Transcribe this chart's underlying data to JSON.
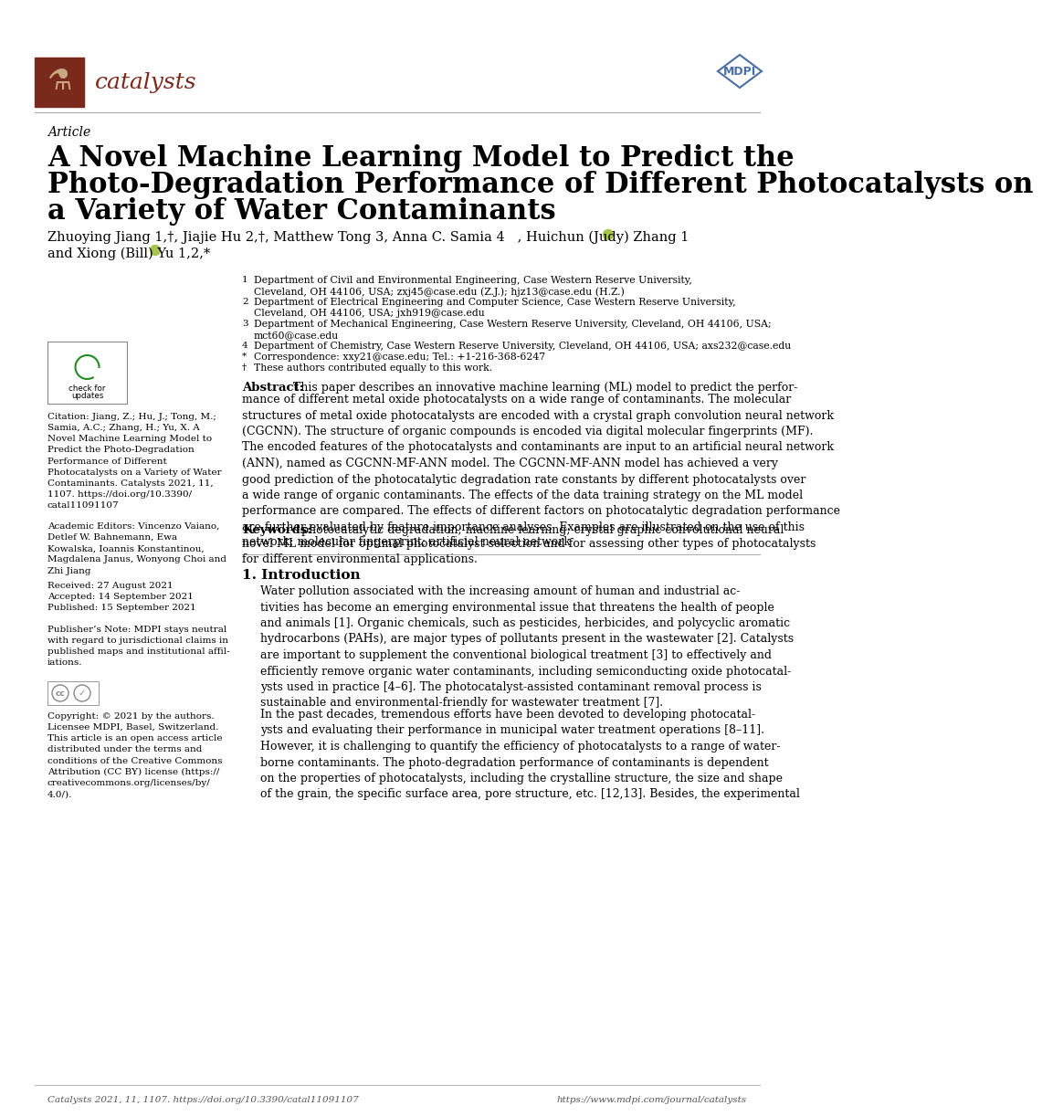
{
  "title_line1": "A Novel Machine Learning Model to Predict the",
  "title_line2": "Photo-Degradation Performance of Different Photocatalysts on",
  "title_line3": "a Variety of Water Contaminants",
  "article_label": "Article",
  "journal_name": "catalysts",
  "mdpi_color": "#4a6fa5",
  "header_color": "#7a2a1a",
  "bg_color": "#ffffff",
  "text_color": "#000000",
  "footer_text_left": "Catalysts 2021, 11, 1107. https://doi.org/10.3390/catal11091107",
  "footer_text_right": "https://www.mdpi.com/journal/catalysts",
  "citation_text": "Citation: Jiang, Z.; Hu, J.; Tong, M.;\nSamia, A.C.; Zhang, H.; Yu, X. A\nNovel Machine Learning Model to\nPredict the Photo-Degradation\nPerformance of Different\nPhotocatalysts on a Variety of Water\nContaminants. Catalysts 2021, 11,\n1107. https://doi.org/10.3390/\ncatal11091107",
  "academic_editors": "Academic Editors: Vincenzo Vaiano,\nDetlef W. Bahnemann, Ewa\nKowalska, Ioannis Konstantinou,\nMagdalena Janus, Wonyong Choi and\nZhi Jiang",
  "received": "Received: 27 August 2021",
  "accepted": "Accepted: 14 September 2021",
  "published": "Published: 15 September 2021",
  "publisher_note": "Publisher’s Note: MDPI stays neutral\nwith regard to jurisdictional claims in\npublished maps and institutional affil-\niations.",
  "copyright_text": "Copyright: © 2021 by the authors.\nLicensee MDPI, Basel, Switzerland.\nThis article is an open access article\ndistributed under the terms and\nconditions of the Creative Commons\nAttribution (CC BY) license (https://\ncreativecommons.org/licenses/by/\n4.0/).",
  "abstract_title": "Abstract:",
  "abstract_body": "This paper describes an innovative machine learning (ML) model to predict the perfor-\nmance of different metal oxide photocatalysts on a wide range of contaminants. The molecular\nstructures of metal oxide photocatalysts are encoded with a crystal graph convolution neural network\n(CGCNN). The structure of organic compounds is encoded via digital molecular fingerprints (MF).\nThe encoded features of the photocatalysts and contaminants are input to an artificial neural network\n(ANN), named as CGCNN-MF-ANN model. The CGCNN-MF-ANN model has achieved a very\ngood prediction of the photocatalytic degradation rate constants by different photocatalysts over\na wide range of organic contaminants. The effects of the data training strategy on the ML model\nperformance are compared. The effects of different factors on photocatalytic degradation performance\nare further evaluated by feature importance analyses. Examples are illustrated on the use of this\nnovel ML model for optimal photocatalyst selection and for assessing other types of photocatalysts\nfor different environmental applications.",
  "keywords_title": "Keywords:",
  "keywords_body": "photocatalytic degradation; machine learning; crystal graphic convolutional neural\nnetwork; molecular fingerprint; artificial neural network",
  "intro_title": "1. Introduction",
  "intro_body1": "Water pollution associated with the increasing amount of human and industrial ac-\ntivities has become an emerging environmental issue that threatens the health of people\nand animals [1]. Organic chemicals, such as pesticides, herbicides, and polycyclic aromatic\nhydrocarbons (PAHs), are major types of pollutants present in the wastewater [2]. Catalysts\nare important to supplement the conventional biological treatment [3] to effectively and\nefficiently remove organic water contaminants, including semiconducting oxide photocatal-\nysts used in practice [4–6]. The photocatalyst-assisted contaminant removal process is\nsustainable and environmental-friendly for wastewater treatment [7].",
  "intro_body2": "In the past decades, tremendous efforts have been devoted to developing photocatal-\nysts and evaluating their performance in municipal water treatment operations [8–11].\nHowever, it is challenging to quantify the efficiency of photocatalysts to a range of water-\nborne contaminants. The photo-degradation performance of contaminants is dependent\non the properties of photocatalysts, including the crystalline structure, the size and shape\nof the grain, the specific surface area, pore structure, etc. [12,13]. Besides, the experimental",
  "authors_line1": "Zhuoying Jiang 1,†, Jiajie Hu 2,†, Matthew Tong 3, Anna C. Samia 4   , Huichun (Judy) Zhang 1",
  "authors_line2": "and Xiong (Bill) Yu 1,2,*   ",
  "aff_lines": [
    [
      "1",
      "Department of Civil and Environmental Engineering, Case Western Reserve University,",
      292
    ],
    [
      "",
      "Cleveland, OH 44106, USA; zxj45@case.edu (Z.J.); hjz13@case.edu (H.Z.)",
      304
    ],
    [
      "2",
      "Department of Electrical Engineering and Computer Science, Case Western Reserve University,",
      316
    ],
    [
      "",
      "Cleveland, OH 44106, USA; jxh919@case.edu",
      328
    ],
    [
      "3",
      "Department of Mechanical Engineering, Case Western Reserve University, Cleveland, OH 44106, USA;",
      340
    ],
    [
      "",
      "mct60@case.edu",
      352
    ],
    [
      "4",
      "Department of Chemistry, Case Western Reserve University, Cleveland, OH 44106, USA; axs232@case.edu",
      364
    ],
    [
      "*",
      "Correspondence: xxy21@case.edu; Tel.: +1-216-368-6247",
      376
    ],
    [
      "†",
      "These authors contributed equally to this work.",
      388
    ]
  ]
}
